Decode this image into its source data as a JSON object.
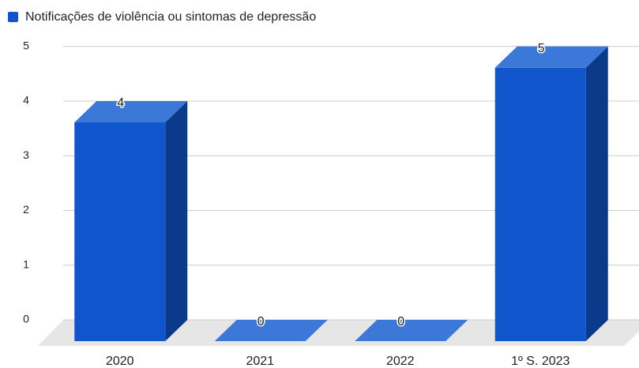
{
  "chart_data": {
    "type": "bar3d",
    "categories": [
      "2020",
      "2021",
      "2022",
      "1º S. 2023"
    ],
    "series": [
      {
        "name": "Notificações de violência ou sintomas de depressão",
        "color": "#1155cc",
        "values": [
          4,
          0,
          0,
          5
        ]
      }
    ],
    "ylim": [
      0,
      5
    ],
    "yticks": [
      0,
      1,
      2,
      3,
      4,
      5
    ],
    "grid": true,
    "legend": "top-left"
  }
}
